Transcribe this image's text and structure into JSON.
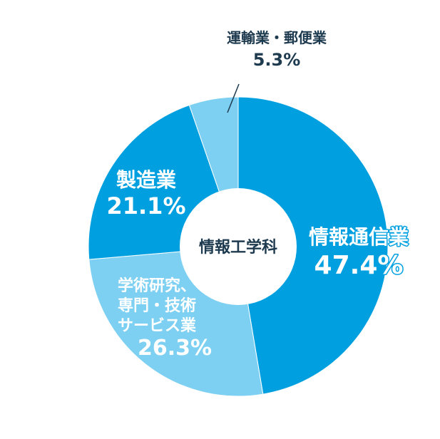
{
  "chart_data": {
    "type": "donut",
    "center_label": "情報工学科",
    "slices": [
      {
        "name": "情報通信業",
        "value": 47.4,
        "value_label": "47.4%",
        "color": "#00a0e0",
        "label_color": "#ffffff",
        "label_outline": "#00a0e0"
      },
      {
        "name": "学術研究、専門・技術サービス業",
        "lines": [
          "学術研究、",
          "専門・技術",
          "サービス業"
        ],
        "value": 26.3,
        "value_label": "26.3%",
        "color": "#7dd0f2",
        "label_color": "#ffffff",
        "label_outline": "#7dd0f2"
      },
      {
        "name": "製造業",
        "value": 21.1,
        "value_label": "21.1%",
        "color": "#00a0e0",
        "label_color": "#ffffff",
        "label_outline": "#00a0e0"
      },
      {
        "name": "運輸業・郵便業",
        "value": 5.3,
        "value_label": "5.3%",
        "color": "#7dd0f2",
        "label_color": "#1e3a4f",
        "label_outline": "#ffffff"
      }
    ],
    "text_color": "#1e3a4f"
  }
}
